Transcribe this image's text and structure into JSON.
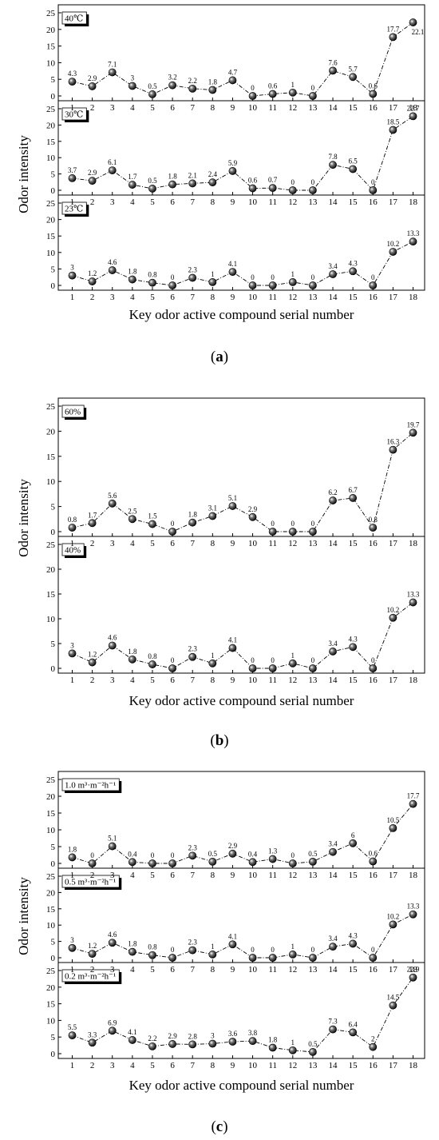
{
  "chart_data": [
    {
      "type": "line",
      "panel_label": "a",
      "ylabel": "Odor intensity",
      "xlabel": "Key odor active compound serial number",
      "x": [
        1,
        2,
        3,
        4,
        5,
        6,
        7,
        8,
        9,
        10,
        11,
        12,
        13,
        14,
        15,
        16,
        17,
        18
      ],
      "ylim": [
        0,
        25
      ],
      "yticks": [
        0,
        5,
        10,
        15,
        20,
        25
      ],
      "grid": false,
      "subplots": [
        {
          "name": "40℃",
          "values": [
            "4.3",
            "2.9",
            "7.1",
            "3",
            "0.5",
            "3.2",
            "2.2",
            "1.8",
            "4.7",
            "0",
            "0.6",
            "1",
            "0",
            "7.6",
            "5.7",
            "0.6",
            "17.7",
            "22.1"
          ]
        },
        {
          "name": "30℃",
          "values": [
            "3.7",
            "2.9",
            "6.1",
            "1.7",
            "0.5",
            "1.8",
            "2.1",
            "2.4",
            "5.9",
            "0.6",
            "0.7",
            "0",
            "0",
            "7.8",
            "6.5",
            "0",
            "18.5",
            "22.7"
          ]
        },
        {
          "name": "23℃",
          "values": [
            "3",
            "1.2",
            "4.6",
            "1.8",
            "0.8",
            "0",
            "2.3",
            "1",
            "4.1",
            "0",
            "0",
            "1",
            "0",
            "3.4",
            "4.3",
            "0",
            "10.2",
            "13.3"
          ]
        }
      ]
    },
    {
      "type": "line",
      "panel_label": "b",
      "ylabel": "Odor intensity",
      "xlabel": "Key odor active compound serial number",
      "x": [
        1,
        2,
        3,
        4,
        5,
        6,
        7,
        8,
        9,
        10,
        11,
        12,
        13,
        14,
        15,
        16,
        17,
        18
      ],
      "ylim": [
        0,
        25
      ],
      "yticks": [
        0,
        5,
        10,
        15,
        20,
        25
      ],
      "grid": false,
      "subplots": [
        {
          "name": "60%",
          "values": [
            "0.8",
            "1.7",
            "5.6",
            "2.5",
            "1.5",
            "0",
            "1.8",
            "3.1",
            "5.1",
            "2.9",
            "0",
            "0",
            "0",
            "6.2",
            "6.7",
            "0.8",
            "16.3",
            "19.7"
          ]
        },
        {
          "name": "40%",
          "values": [
            "3",
            "1.2",
            "4.6",
            "1.8",
            "0.8",
            "0",
            "2.3",
            "1",
            "4.1",
            "0",
            "0",
            "1",
            "0",
            "3.4",
            "4.3",
            "0",
            "10.2",
            "13.3"
          ]
        }
      ]
    },
    {
      "type": "line",
      "panel_label": "c",
      "ylabel": "Odor intensity",
      "xlabel": "Key odor active compound serial number",
      "x": [
        1,
        2,
        3,
        4,
        5,
        6,
        7,
        8,
        9,
        10,
        11,
        12,
        13,
        14,
        15,
        16,
        17,
        18
      ],
      "ylim": [
        0,
        25
      ],
      "yticks": [
        0,
        5,
        10,
        15,
        20,
        25
      ],
      "grid": false,
      "subplots": [
        {
          "name": "1.0 m³·m⁻²h⁻¹",
          "values": [
            "1.8",
            "0",
            "5.1",
            "0.4",
            "0",
            "0",
            "2.3",
            "0.5",
            "2.9",
            "0.4",
            "1.3",
            "0",
            "0.5",
            "3.4",
            "6",
            "0.6",
            "10.5",
            "17.7"
          ]
        },
        {
          "name": "0.5  m³·m⁻²h⁻¹",
          "values": [
            "3",
            "1.2",
            "4.6",
            "1.8",
            "0.8",
            "0",
            "2.3",
            "1",
            "4.1",
            "0",
            "0",
            "1",
            "0",
            "3.4",
            "4.3",
            "0",
            "10.2",
            "13.3"
          ]
        },
        {
          "name": "0.2 m³·m⁻²h⁻¹",
          "values": [
            "5.5",
            "3.3",
            "6.9",
            "4.1",
            "2.2",
            "2.9",
            "2.8",
            "3",
            "3.6",
            "3.8",
            "1.8",
            "1",
            "0.5",
            "7.3",
            "6.4",
            "2",
            "14.5",
            "22.9"
          ]
        }
      ]
    }
  ]
}
